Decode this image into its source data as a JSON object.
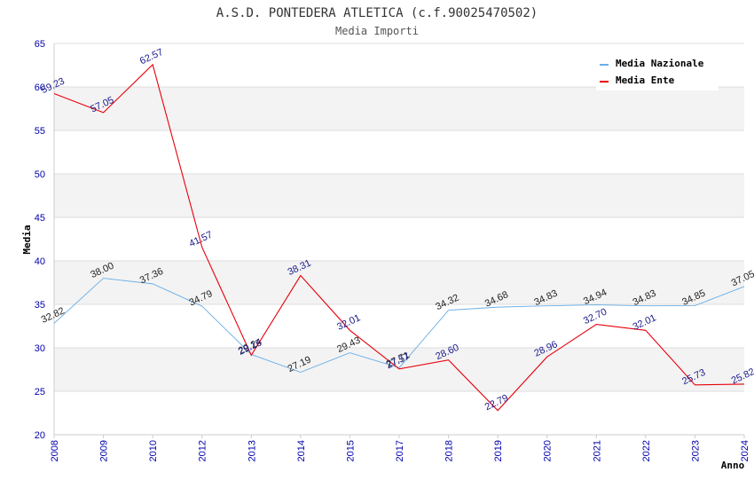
{
  "chart_data": {
    "type": "line",
    "title": "A.S.D. PONTEDERA ATLETICA (c.f.90025470502)",
    "subtitle": "Media Importi",
    "xlabel": "Anno",
    "ylabel": "Media",
    "ylim": [
      20,
      65
    ],
    "yticks": [
      20,
      25,
      30,
      35,
      40,
      45,
      50,
      55,
      60,
      65
    ],
    "categories": [
      "2008",
      "2009",
      "2010",
      "2012",
      "2013",
      "2014",
      "2015",
      "2017",
      "2018",
      "2019",
      "2020",
      "2021",
      "2022",
      "2023",
      "2024"
    ],
    "series": [
      {
        "name": "Media Nazionale",
        "color": "#6aaee6",
        "values": [
          32.82,
          38.0,
          37.36,
          34.79,
          29.24,
          27.19,
          29.43,
          27.71,
          34.32,
          34.68,
          34.83,
          34.94,
          34.83,
          34.85,
          37.05
        ],
        "labels": [
          "32.82",
          "38.00",
          "37.36",
          "34.79",
          "29.24",
          "27.19",
          "29.43",
          "27.71",
          "34.32",
          "34.68",
          "34.83",
          "34.94",
          "34.83",
          "34.85",
          "37.05"
        ]
      },
      {
        "name": "Media Ente",
        "color": "#e8000b",
        "values": [
          59.23,
          57.05,
          62.57,
          41.57,
          29.15,
          38.31,
          32.01,
          27.57,
          28.6,
          22.79,
          28.96,
          32.7,
          32.01,
          25.73,
          25.82
        ],
        "labels": [
          "59.23",
          "57.05",
          "62.57",
          "41.57",
          "29.15",
          "38.31",
          "32.01",
          "27.57",
          "28.60",
          "22.79",
          "28.96",
          "32.70",
          "32.01",
          "25.73",
          "25.82"
        ]
      }
    ],
    "legend_position": "top-right"
  }
}
